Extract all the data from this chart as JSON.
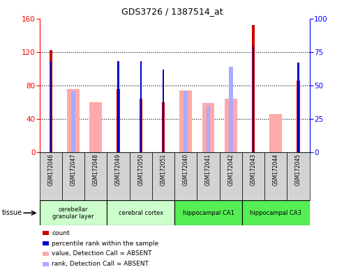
{
  "title": "GDS3726 / 1387514_at",
  "samples": [
    "GSM172046",
    "GSM172047",
    "GSM172048",
    "GSM172049",
    "GSM172050",
    "GSM172051",
    "GSM172040",
    "GSM172041",
    "GSM172042",
    "GSM172043",
    "GSM172044",
    "GSM172045"
  ],
  "count_values": [
    122,
    0,
    0,
    76,
    64,
    60,
    0,
    0,
    0,
    152,
    0,
    86
  ],
  "percentile_rank": [
    68,
    0,
    0,
    68,
    68,
    62,
    0,
    0,
    0,
    79,
    0,
    67
  ],
  "absent_value": [
    0,
    76,
    60,
    0,
    0,
    0,
    74,
    59,
    64,
    0,
    46,
    0
  ],
  "absent_rank": [
    0,
    46,
    0,
    0,
    0,
    0,
    46,
    35,
    64,
    0,
    0,
    0
  ],
  "tissues": [
    {
      "label": "cerebellar\ngranular layer",
      "start": 0,
      "end": 3,
      "color": "#ccffcc"
    },
    {
      "label": "cerebral cortex",
      "start": 3,
      "end": 6,
      "color": "#ccffcc"
    },
    {
      "label": "hippocampal CA1",
      "start": 6,
      "end": 9,
      "color": "#55ee55"
    },
    {
      "label": "hippocampal CA3",
      "start": 9,
      "end": 12,
      "color": "#55ee55"
    }
  ],
  "ylim_left": [
    0,
    160
  ],
  "ylim_right": [
    0,
    100
  ],
  "yticks_left": [
    0,
    40,
    80,
    120,
    160
  ],
  "yticks_right": [
    0,
    25,
    50,
    75,
    100
  ],
  "color_count": "#cc0000",
  "color_rank": "#0000cc",
  "color_absent_value": "#ffaaaa",
  "color_absent_rank": "#aaaaff",
  "legend_items": [
    {
      "color": "#cc0000",
      "label": "count"
    },
    {
      "color": "#0000cc",
      "label": "percentile rank within the sample"
    },
    {
      "color": "#ffaaaa",
      "label": "value, Detection Call = ABSENT"
    },
    {
      "color": "#aaaaff",
      "label": "rank, Detection Call = ABSENT"
    }
  ]
}
